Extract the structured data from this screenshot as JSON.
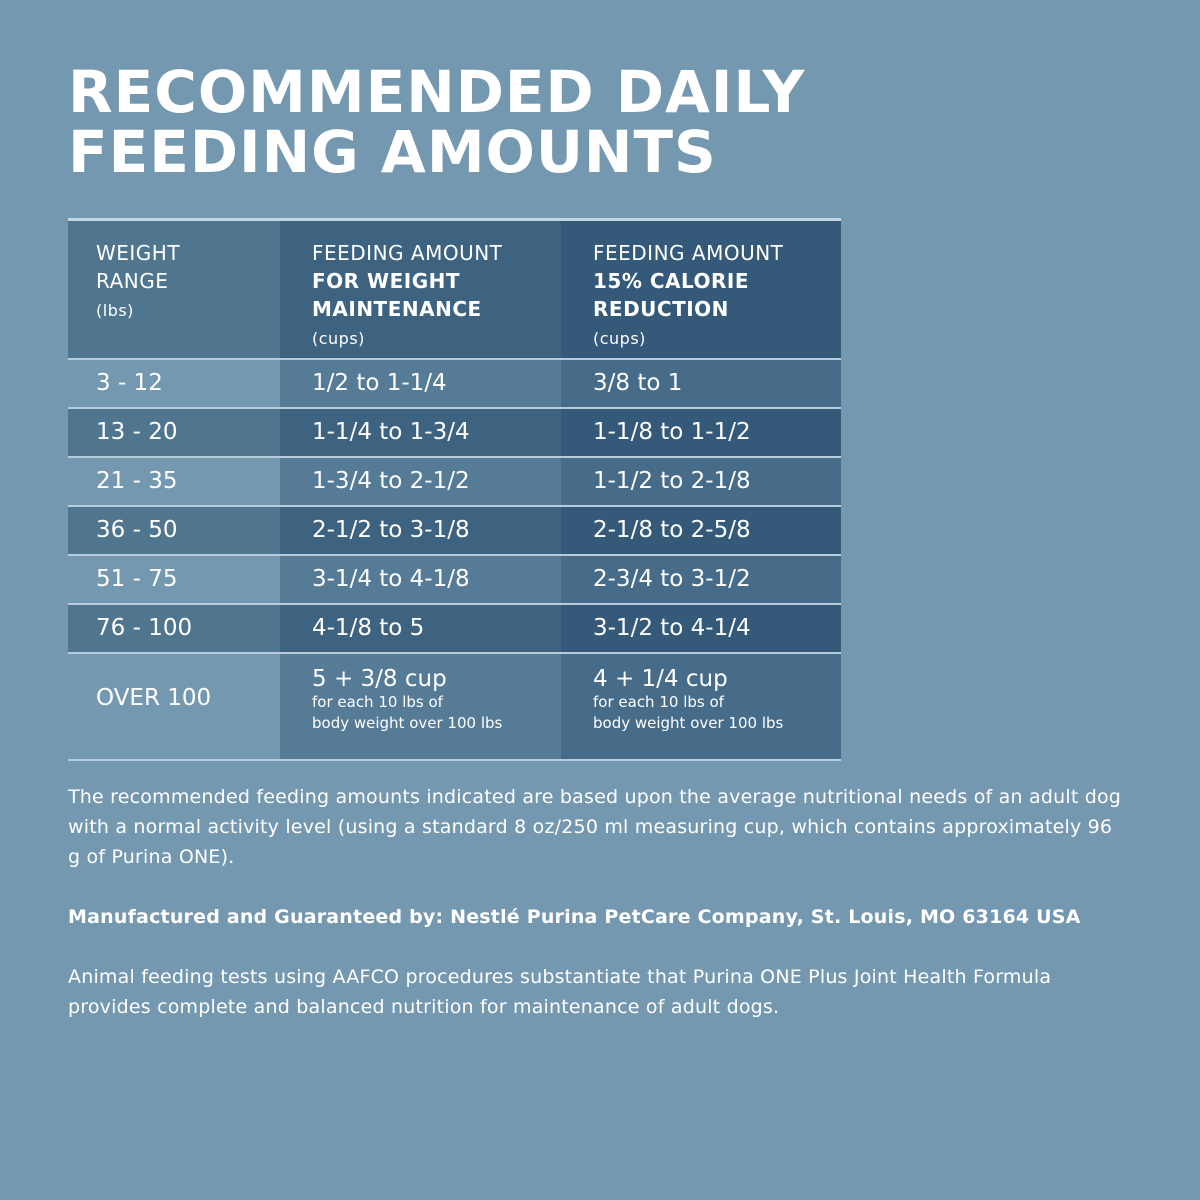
{
  "title_lines": [
    "RECOMMENDED DAILY",
    "FEEDING AMOUNTS"
  ],
  "header": {
    "col1": {
      "line1": "WEIGHT",
      "line2": "RANGE",
      "unit": "(lbs)"
    },
    "col2": {
      "line1": "FEEDING AMOUNT",
      "bold1": "FOR WEIGHT",
      "bold2": "MAINTENANCE",
      "unit": "(cups)"
    },
    "col3": {
      "line1": "FEEDING AMOUNT",
      "bold1": "15% CALORIE",
      "bold2": "REDUCTION",
      "unit": "(cups)"
    }
  },
  "rows": [
    [
      "3 - 12",
      "1/2 to 1-1/4",
      "3/8 to 1"
    ],
    [
      "13 - 20",
      "1-1/4 to 1-3/4",
      "1-1/8 to 1-1/2"
    ],
    [
      "21 - 35",
      "1-3/4 to 2-1/2",
      "1-1/2 to 2-1/8"
    ],
    [
      "36 - 50",
      "2-1/2 to 3-1/8",
      "2-1/8 to 2-5/8"
    ],
    [
      "51 - 75",
      "3-1/4 to 4-1/8",
      "2-3/4 to 3-1/2"
    ],
    [
      "76 - 100",
      "4-1/8 to 5",
      "3-1/2 to 4-1/4"
    ]
  ],
  "last_row": {
    "weight": "OVER 100",
    "maint": {
      "amount": "5 + 3/8 cup",
      "note1": "for each 10 lbs of",
      "note2": "body weight over 100 lbs"
    },
    "reduct": {
      "amount": "4 + 1/4 cup",
      "note1": "for each 10 lbs of",
      "note2": "body weight over 100 lbs"
    }
  },
  "notes": {
    "p1": "The recommended feeding amounts indicated are based upon the average nutritional needs of an adult dog with a normal activity level (using a standard 8 oz/250 ml measuring cup, which contains approximately 96 g of Purina ONE).",
    "p2": "Manufactured and Guaranteed by: Nestlé Purina PetCare Company, St. Louis, MO 63164 USA",
    "p3": "Animal feeding tests using AAFCO procedures substantiate that Purina ONE Plus Joint Health Formula provides complete and balanced nutrition for maintenance of adult dogs."
  },
  "colors": {
    "background": "#7598b1",
    "header_dark": "#345979",
    "divider": "#b6cddd"
  }
}
